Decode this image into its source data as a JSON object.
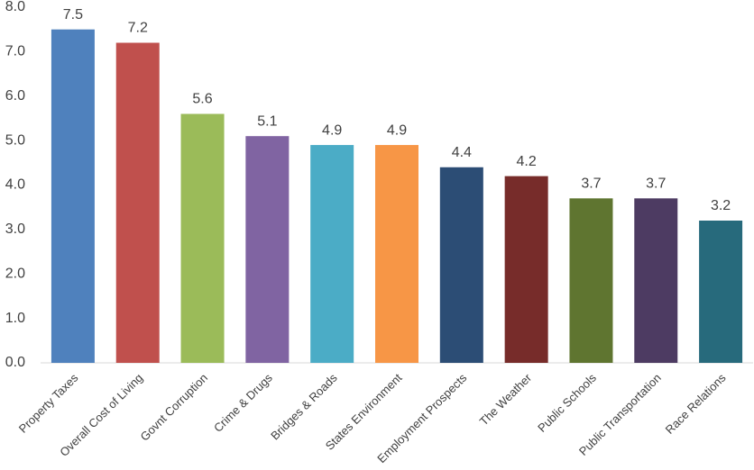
{
  "chart_data": {
    "type": "bar",
    "categories": [
      "Property Taxes",
      "Overall Cost of Living",
      "Govnt Corruption",
      "Crime & Drugs",
      "Bridges & Roads",
      "States Environment",
      "Employment Prospects",
      "The Weather",
      "Public Schools",
      "Public Transportation",
      "Race Relations"
    ],
    "values": [
      7.5,
      7.2,
      5.6,
      5.1,
      4.9,
      4.9,
      4.4,
      4.2,
      3.7,
      3.7,
      3.2
    ],
    "colors": [
      "#4f81bd",
      "#c0504d",
      "#9bbb59",
      "#8064a2",
      "#4bacc6",
      "#f79646",
      "#2c4d75",
      "#772c2a",
      "#5f7530",
      "#4d3b62",
      "#276a7c"
    ],
    "ylim": [
      0,
      8
    ],
    "yticks": [
      {
        "value": 0,
        "label": "0.0"
      },
      {
        "value": 1,
        "label": "1.0"
      },
      {
        "value": 2,
        "label": "2.0"
      },
      {
        "value": 3,
        "label": "3.0"
      },
      {
        "value": 4,
        "label": "4.0"
      },
      {
        "value": 5,
        "label": "5.0"
      },
      {
        "value": 6,
        "label": "6.0"
      },
      {
        "value": 7,
        "label": "7.0"
      },
      {
        "value": 8,
        "label": "8.0"
      }
    ],
    "grid": false
  }
}
